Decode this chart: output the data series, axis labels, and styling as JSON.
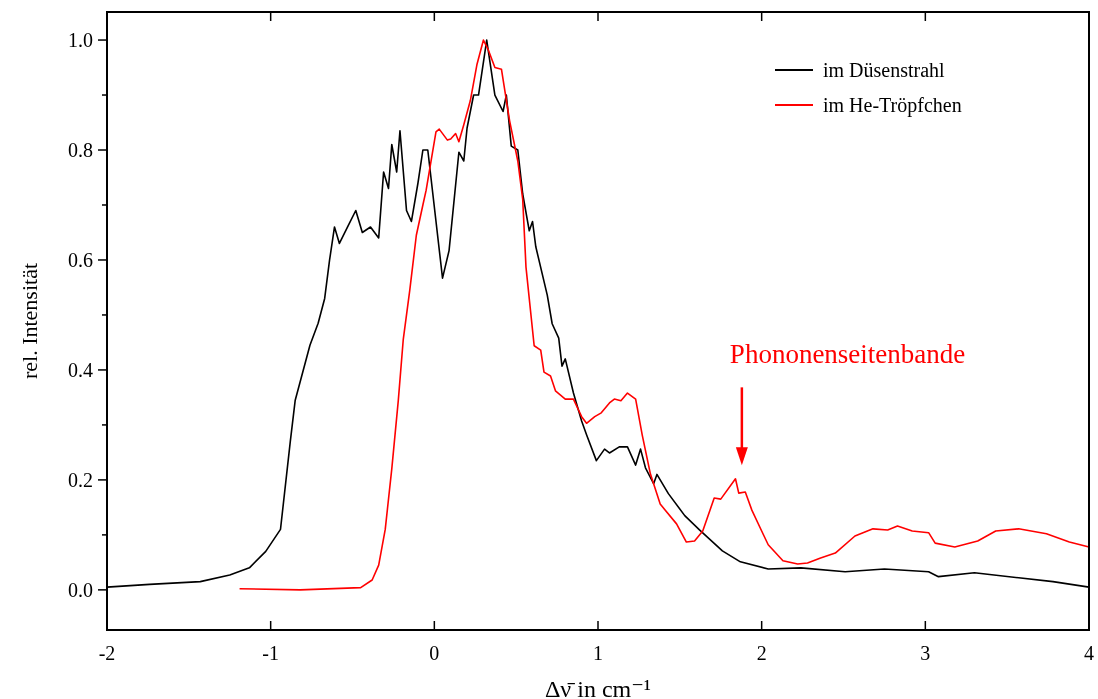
{
  "chart_data": {
    "type": "line",
    "xlabel": "Δν̄ in cm⁻¹",
    "ylabel": "rel. Intensität",
    "xlim": [
      -2,
      4
    ],
    "ylim": [
      -0.073,
      1.051
    ],
    "xticks": [
      -2,
      -1,
      0,
      1,
      2,
      3,
      4
    ],
    "yticks": [
      {
        "value": 0,
        "label": "0.0"
      },
      {
        "value": 0.1,
        "label": null
      },
      0.2,
      {
        "value": 0.3,
        "label": null
      },
      0.4,
      {
        "value": 0.5,
        "label": null
      },
      0.6,
      {
        "value": 0.7,
        "label": null
      },
      0.8,
      {
        "value": 0.9,
        "label": null
      },
      {
        "value": 1,
        "label": "1.0"
      }
    ],
    "legend": "top right",
    "grid": false,
    "series": [
      {
        "name": "im Düsenstrahl",
        "color": "#000000",
        "x": [
          -2,
          -1.74,
          -1.43,
          -1.25,
          -1.13,
          -1.03,
          -0.94,
          -0.88,
          -0.85,
          -0.76,
          -0.71,
          -0.67,
          -0.64,
          -0.61,
          -0.58,
          -0.53,
          -0.48,
          -0.44,
          -0.39,
          -0.34,
          -0.31,
          -0.28,
          -0.26,
          -0.23,
          -0.21,
          -0.17,
          -0.14,
          -0.1,
          -0.07,
          -0.04,
          0.05,
          0.09,
          0.15,
          0.18,
          0.2,
          0.24,
          0.27,
          0.32,
          0.37,
          0.42,
          0.44,
          0.47,
          0.51,
          0.54,
          0.58,
          0.6,
          0.62,
          0.69,
          0.72,
          0.76,
          0.78,
          0.8,
          0.85,
          0.9,
          0.93,
          0.99,
          1.04,
          1.07,
          1.13,
          1.18,
          1.23,
          1.26,
          1.29,
          1.34,
          1.36,
          1.43,
          1.53,
          1.62,
          1.76,
          1.87,
          2.04,
          2.24,
          2.51,
          2.75,
          3.02,
          3.08,
          3.3,
          3.57,
          3.78,
          4
        ],
        "values": [
          0.005,
          0.01,
          0.015,
          0.027,
          0.04,
          0.07,
          0.11,
          0.27,
          0.345,
          0.445,
          0.485,
          0.53,
          0.6,
          0.66,
          0.63,
          0.66,
          0.69,
          0.65,
          0.66,
          0.64,
          0.76,
          0.73,
          0.81,
          0.76,
          0.835,
          0.69,
          0.67,
          0.74,
          0.8,
          0.8,
          0.567,
          0.617,
          0.796,
          0.78,
          0.84,
          0.9,
          0.9,
          1.0,
          0.9,
          0.87,
          0.9,
          0.807,
          0.8,
          0.72,
          0.653,
          0.67,
          0.624,
          0.536,
          0.484,
          0.458,
          0.407,
          0.42,
          0.358,
          0.307,
          0.282,
          0.235,
          0.256,
          0.249,
          0.26,
          0.26,
          0.227,
          0.256,
          0.222,
          0.193,
          0.21,
          0.175,
          0.135,
          0.109,
          0.071,
          0.051,
          0.038,
          0.04,
          0.033,
          0.038,
          0.033,
          0.024,
          0.031,
          0.022,
          0.015,
          0.005
        ]
      },
      {
        "name": "im He-Tröpfchen",
        "color": "#ff0000",
        "x": [
          -1.19,
          -0.82,
          -0.45,
          -0.38,
          -0.34,
          -0.3,
          -0.26,
          -0.22,
          -0.19,
          -0.15,
          -0.11,
          -0.07,
          -0.05,
          0.01,
          0.03,
          0.08,
          0.1,
          0.13,
          0.15,
          0.18,
          0.22,
          0.26,
          0.3,
          0.33,
          0.37,
          0.41,
          0.46,
          0.51,
          0.54,
          0.56,
          0.61,
          0.65,
          0.67,
          0.71,
          0.74,
          0.8,
          0.85,
          0.9,
          0.93,
          0.98,
          1.02,
          1.07,
          1.1,
          1.14,
          1.18,
          1.23,
          1.27,
          1.32,
          1.38,
          1.48,
          1.54,
          1.59,
          1.64,
          1.71,
          1.75,
          1.84,
          1.86,
          1.9,
          1.94,
          2,
          2.04,
          2.13,
          2.22,
          2.28,
          2.36,
          2.45,
          2.57,
          2.68,
          2.77,
          2.83,
          2.92,
          3.02,
          3.06,
          3.18,
          3.32,
          3.43,
          3.57,
          3.74,
          3.88,
          4
        ],
        "values": [
          0.002,
          0,
          0.004,
          0.018,
          0.045,
          0.11,
          0.22,
          0.345,
          0.455,
          0.545,
          0.645,
          0.7,
          0.727,
          0.833,
          0.838,
          0.818,
          0.82,
          0.83,
          0.815,
          0.846,
          0.89,
          0.955,
          1.0,
          0.982,
          0.95,
          0.947,
          0.853,
          0.78,
          0.71,
          0.587,
          0.444,
          0.436,
          0.396,
          0.389,
          0.362,
          0.347,
          0.347,
          0.315,
          0.303,
          0.315,
          0.322,
          0.34,
          0.347,
          0.344,
          0.358,
          0.347,
          0.282,
          0.211,
          0.156,
          0.12,
          0.087,
          0.089,
          0.107,
          0.167,
          0.165,
          0.202,
          0.176,
          0.178,
          0.145,
          0.107,
          0.082,
          0.053,
          0.047,
          0.049,
          0.058,
          0.067,
          0.098,
          0.111,
          0.109,
          0.116,
          0.107,
          0.104,
          0.085,
          0.078,
          0.089,
          0.107,
          0.111,
          0.102,
          0.087,
          0.078
        ]
      }
    ],
    "annotations": [
      "Phononenseitenbande"
    ]
  }
}
